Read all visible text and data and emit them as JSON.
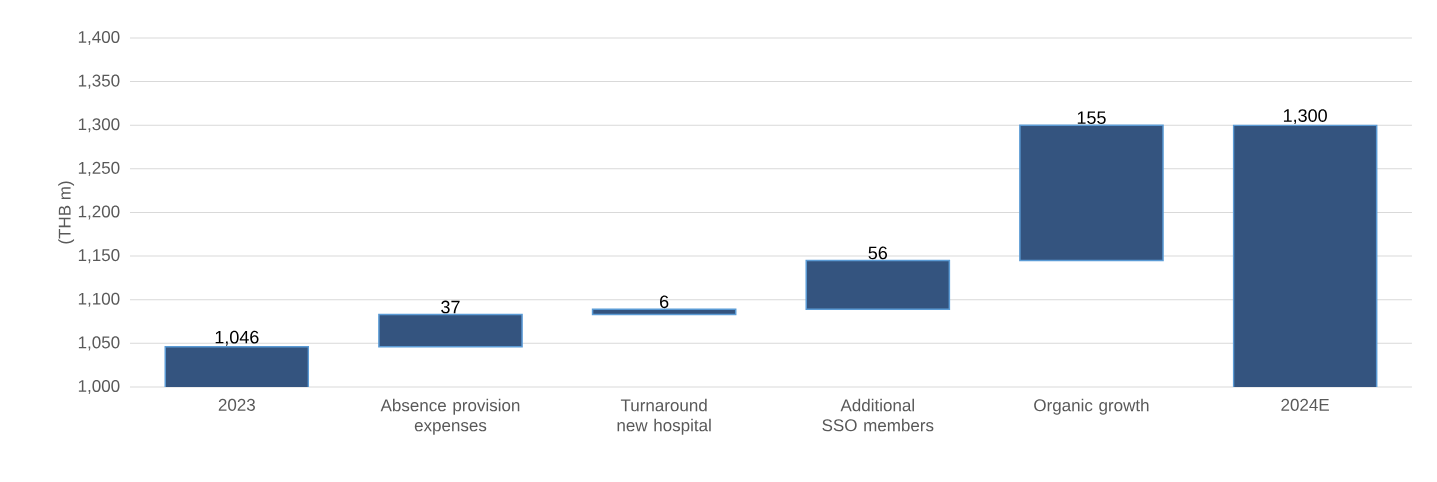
{
  "chart_data": {
    "type": "bar",
    "ylabel": "(THB m)",
    "categories": [
      "2023",
      "Absence provision expenses",
      "Turnaround new hospital",
      "Additional SSO members",
      "Organic growth",
      "2024E"
    ],
    "values": [
      1046,
      37,
      6,
      56,
      155,
      1300
    ],
    "base": [
      0,
      1046,
      1083,
      1089,
      1145,
      0
    ],
    "value_labels": [
      "1,046",
      "37",
      "6",
      "56",
      "155",
      "1,300"
    ],
    "color": "#34547f",
    "ylim": [
      1000,
      1400
    ],
    "yticks": [
      {
        "value": 1000,
        "label": "1,000"
      },
      {
        "value": 1050,
        "label": "1,050"
      },
      {
        "value": 1100,
        "label": "1,100"
      },
      {
        "value": 1150,
        "label": "1,150"
      },
      {
        "value": 1200,
        "label": "1,200"
      },
      {
        "value": 1250,
        "label": "1,250"
      },
      {
        "value": 1300,
        "label": "1,300"
      },
      {
        "value": 1350,
        "label": "1,350"
      },
      {
        "value": 1400,
        "label": "1,400"
      }
    ],
    "grid": "y"
  }
}
